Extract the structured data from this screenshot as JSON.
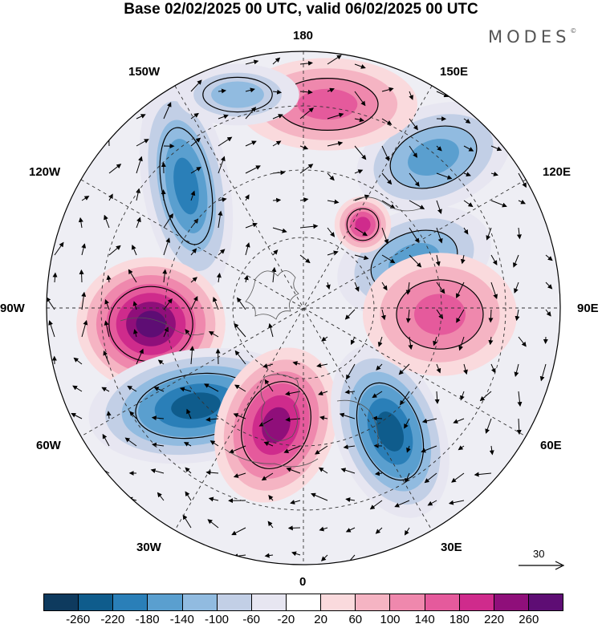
{
  "title": "Base 02/02/2025 00 UTC, valid 06/02/2025 00 UTC",
  "brand": "MODES",
  "brand_mark": "©",
  "longitude_labels": {
    "lon_180": "180",
    "lon_150w": "150W",
    "lon_150e": "150E",
    "lon_120w": "120W",
    "lon_120e": "120E",
    "lon_90w": "90W",
    "lon_90e": "90E",
    "lon_60w": "60W",
    "lon_60e": "60E",
    "lon_30w": "30W",
    "lon_30e": "30E",
    "lon_0": "0"
  },
  "reference_vector": {
    "label": "30"
  },
  "colorbar": {
    "tick_labels": [
      "-260",
      "-220",
      "-180",
      "-140",
      "-100",
      "-60",
      "-20",
      "20",
      "60",
      "100",
      "140",
      "180",
      "220",
      "260"
    ],
    "colors": [
      "#0e3a5e",
      "#0f5c8c",
      "#2a7fb8",
      "#5a9fcf",
      "#91bbe0",
      "#c2cfe6",
      "#e7e6f1",
      "#ffffff",
      "#fadadd",
      "#f5b4c3",
      "#ef88ad",
      "#e55a9c",
      "#cf2b8c",
      "#8f0f7a",
      "#5e0d74"
    ]
  },
  "anomalies": [
    {
      "name": "low-120w",
      "value": -180
    },
    {
      "name": "high-90w",
      "value": 260
    },
    {
      "name": "low-60w",
      "value": -220
    },
    {
      "name": "high-atlantic",
      "value": 220
    },
    {
      "name": "low-30e",
      "value": -220
    },
    {
      "name": "low-120e",
      "value": -140
    },
    {
      "name": "low-90e-north",
      "value": -140
    },
    {
      "name": "high-90e",
      "value": 140
    },
    {
      "name": "high-180",
      "value": 140
    },
    {
      "name": "high-pole",
      "value": 180
    },
    {
      "name": "low-150w",
      "value": -100
    }
  ]
}
